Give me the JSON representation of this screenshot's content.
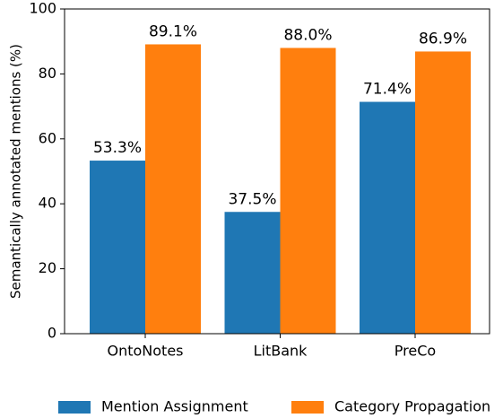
{
  "chart_data": {
    "type": "bar",
    "ylabel": "Semantically annotated mentions (%)",
    "categories": [
      "OntoNotes",
      "LitBank",
      "PreCo"
    ],
    "series": [
      {
        "name": "Mention Assignment",
        "color": "#1f77b4",
        "values": [
          53.3,
          37.5,
          71.4
        ],
        "value_labels": [
          "53.3%",
          "37.5%",
          "71.4%"
        ]
      },
      {
        "name": "Category Propagation",
        "color": "#ff7f0e",
        "values": [
          89.1,
          88.0,
          86.9
        ],
        "value_labels": [
          "89.1%",
          "88.0%",
          "86.9%"
        ]
      }
    ],
    "ylim": [
      0,
      100
    ],
    "yticks": [
      0,
      20,
      40,
      60,
      80,
      100
    ],
    "legend": "bottom"
  }
}
